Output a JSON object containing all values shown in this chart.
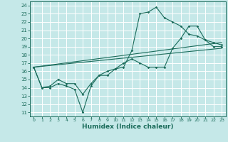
{
  "xlabel": "Humidex (Indice chaleur)",
  "bg_color": "#c5e8e8",
  "line_color": "#1a6b5a",
  "xlim": [
    -0.5,
    23.5
  ],
  "ylim": [
    10.5,
    24.5
  ],
  "xticks": [
    0,
    1,
    2,
    3,
    4,
    5,
    6,
    7,
    8,
    9,
    10,
    11,
    12,
    13,
    14,
    15,
    16,
    17,
    18,
    19,
    20,
    21,
    22,
    23
  ],
  "yticks": [
    11,
    12,
    13,
    14,
    15,
    16,
    17,
    18,
    19,
    20,
    21,
    22,
    23,
    24
  ],
  "line1_x": [
    0,
    1,
    2,
    3,
    4,
    5,
    6,
    7,
    8,
    9,
    10,
    11,
    12,
    13,
    14,
    15,
    16,
    17,
    18,
    19,
    20,
    21,
    22,
    23
  ],
  "line1_y": [
    16.5,
    14,
    14,
    14.5,
    14.2,
    13.8,
    11.0,
    14.2,
    15.5,
    16.0,
    16.3,
    16.5,
    18.5,
    23.0,
    23.2,
    23.8,
    22.5,
    22.0,
    21.5,
    20.5,
    20.3,
    19.8,
    19.0,
    19.0
  ],
  "line2_x": [
    0,
    1,
    2,
    3,
    4,
    5,
    6,
    7,
    8,
    9,
    10,
    11,
    12,
    13,
    14,
    15,
    16,
    17,
    18,
    19,
    20,
    21,
    22,
    23
  ],
  "line2_y": [
    16.5,
    14,
    14.2,
    15,
    14.5,
    14.5,
    13.2,
    14.5,
    15.5,
    15.5,
    16.3,
    17.0,
    17.5,
    17.0,
    16.5,
    16.5,
    16.5,
    18.8,
    20.0,
    21.5,
    21.5,
    19.8,
    19.5,
    19.2
  ],
  "line3_x": [
    0,
    23
  ],
  "line3_y": [
    16.5,
    18.8
  ],
  "line4_x": [
    0,
    23
  ],
  "line4_y": [
    16.5,
    19.5
  ]
}
